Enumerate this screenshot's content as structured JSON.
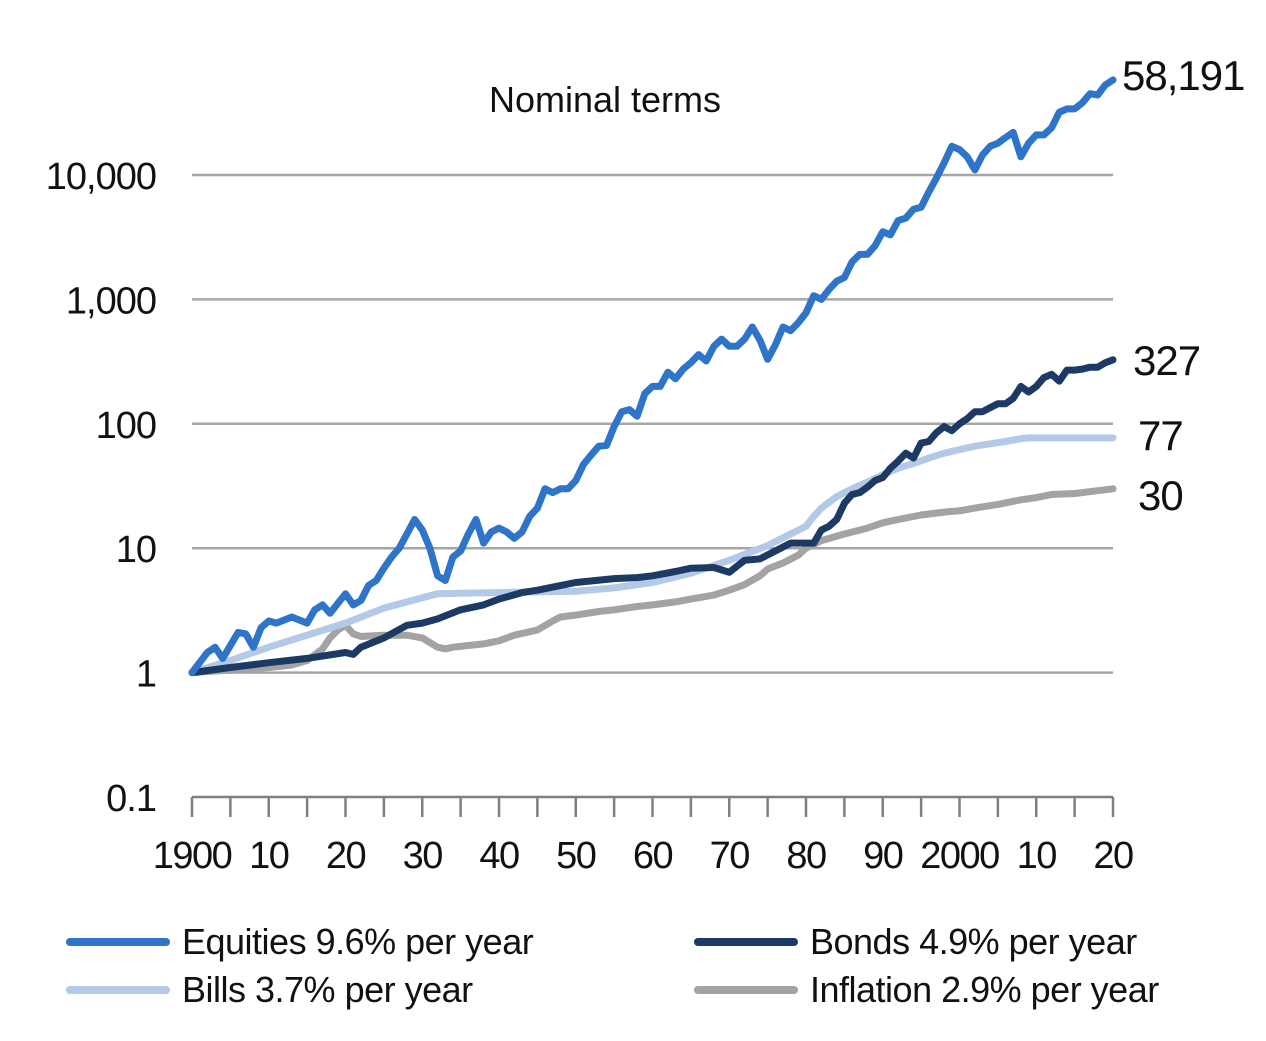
{
  "chart_data": {
    "type": "line",
    "title": "Nominal terms",
    "xlabel": "",
    "ylabel": "",
    "y_scale": "log",
    "ylim": [
      0.1,
      60000
    ],
    "xlim": [
      1900,
      2020
    ],
    "y_ticks": [
      0.1,
      1,
      10,
      100,
      1000,
      10000
    ],
    "y_tick_labels": [
      "0.1",
      "1",
      "10",
      "100",
      "1,000",
      "10,000"
    ],
    "x_ticks": [
      1900,
      1910,
      1920,
      1930,
      1940,
      1950,
      1960,
      1970,
      1980,
      1990,
      2000,
      2010,
      2020
    ],
    "x_tick_labels": [
      "1900",
      "10",
      "20",
      "30",
      "40",
      "50",
      "60",
      "70",
      "80",
      "90",
      "2000",
      "10",
      "20"
    ],
    "grid": "horizontal",
    "legend_position": "bottom",
    "series": [
      {
        "name": "Equities",
        "legend_label": "Equities  9.6% per year",
        "color": "#2e74c9",
        "end_label": "58,191",
        "points": [
          [
            1900,
            1
          ],
          [
            1902,
            1.45
          ],
          [
            1903,
            1.6
          ],
          [
            1904,
            1.3
          ],
          [
            1906,
            2.1
          ],
          [
            1907,
            2.05
          ],
          [
            1908,
            1.6
          ],
          [
            1909,
            2.3
          ],
          [
            1910,
            2.6
          ],
          [
            1911,
            2.5
          ],
          [
            1913,
            2.8
          ],
          [
            1915,
            2.5
          ],
          [
            1916,
            3.2
          ],
          [
            1917,
            3.5
          ],
          [
            1918,
            3
          ],
          [
            1919,
            3.6
          ],
          [
            1920,
            4.3
          ],
          [
            1921,
            3.5
          ],
          [
            1922,
            3.8
          ],
          [
            1923,
            5
          ],
          [
            1924,
            5.5
          ],
          [
            1925,
            6.9
          ],
          [
            1926,
            8.5
          ],
          [
            1927,
            10
          ],
          [
            1928,
            13
          ],
          [
            1929,
            17
          ],
          [
            1930,
            14
          ],
          [
            1931,
            10
          ],
          [
            1932,
            6
          ],
          [
            1933,
            5.5
          ],
          [
            1934,
            8.5
          ],
          [
            1935,
            9.5
          ],
          [
            1936,
            13
          ],
          [
            1937,
            17
          ],
          [
            1938,
            11
          ],
          [
            1939,
            13.5
          ],
          [
            1940,
            14.5
          ],
          [
            1941,
            13.5
          ],
          [
            1942,
            12
          ],
          [
            1943,
            13.5
          ],
          [
            1944,
            18
          ],
          [
            1945,
            21
          ],
          [
            1946,
            30
          ],
          [
            1947,
            28
          ],
          [
            1948,
            30
          ],
          [
            1949,
            30
          ],
          [
            1950,
            35
          ],
          [
            1951,
            47
          ],
          [
            1952,
            56
          ],
          [
            1953,
            66
          ],
          [
            1954,
            67
          ],
          [
            1955,
            95
          ],
          [
            1956,
            125
          ],
          [
            1957,
            130
          ],
          [
            1958,
            115
          ],
          [
            1959,
            175
          ],
          [
            1960,
            200
          ],
          [
            1961,
            200
          ],
          [
            1962,
            260
          ],
          [
            1963,
            230
          ],
          [
            1964,
            275
          ],
          [
            1965,
            310
          ],
          [
            1966,
            360
          ],
          [
            1967,
            320
          ],
          [
            1968,
            420
          ],
          [
            1969,
            480
          ],
          [
            1970,
            420
          ],
          [
            1971,
            420
          ],
          [
            1972,
            480
          ],
          [
            1973,
            600
          ],
          [
            1974,
            470
          ],
          [
            1975,
            330
          ],
          [
            1976,
            430
          ],
          [
            1977,
            600
          ],
          [
            1978,
            560
          ],
          [
            1979,
            650
          ],
          [
            1980,
            780
          ],
          [
            1981,
            1070
          ],
          [
            1982,
            1000
          ],
          [
            1983,
            1200
          ],
          [
            1984,
            1400
          ],
          [
            1985,
            1500
          ],
          [
            1986,
            2000
          ],
          [
            1987,
            2300
          ],
          [
            1988,
            2300
          ],
          [
            1989,
            2700
          ],
          [
            1990,
            3500
          ],
          [
            1991,
            3300
          ],
          [
            1992,
            4300
          ],
          [
            1993,
            4500
          ],
          [
            1994,
            5300
          ],
          [
            1995,
            5500
          ],
          [
            1996,
            7300
          ],
          [
            1997,
            9500
          ],
          [
            1998,
            12500
          ],
          [
            1999,
            17000
          ],
          [
            2000,
            16000
          ],
          [
            2001,
            14000
          ],
          [
            2002,
            11000
          ],
          [
            2003,
            14500
          ],
          [
            2004,
            17000
          ],
          [
            2005,
            18000
          ],
          [
            2006,
            20000
          ],
          [
            2007,
            22000
          ],
          [
            2008,
            14000
          ],
          [
            2009,
            18000
          ],
          [
            2010,
            21000
          ],
          [
            2011,
            21000
          ],
          [
            2012,
            24000
          ],
          [
            2013,
            32000
          ],
          [
            2014,
            34000
          ],
          [
            2015,
            34000
          ],
          [
            2016,
            38000
          ],
          [
            2017,
            45000
          ],
          [
            2018,
            44000
          ],
          [
            2019,
            53000
          ],
          [
            2020,
            58191
          ]
        ]
      },
      {
        "name": "Bonds",
        "legend_label": "Bonds  4.9% per year",
        "color": "#1c3a63",
        "end_label": "327",
        "points": [
          [
            1900,
            1
          ],
          [
            1905,
            1.1
          ],
          [
            1910,
            1.2
          ],
          [
            1915,
            1.3
          ],
          [
            1920,
            1.45
          ],
          [
            1921,
            1.4
          ],
          [
            1922,
            1.6
          ],
          [
            1925,
            1.9
          ],
          [
            1928,
            2.4
          ],
          [
            1930,
            2.5
          ],
          [
            1932,
            2.7
          ],
          [
            1935,
            3.2
          ],
          [
            1938,
            3.5
          ],
          [
            1940,
            3.9
          ],
          [
            1943,
            4.4
          ],
          [
            1945,
            4.6
          ],
          [
            1948,
            5
          ],
          [
            1950,
            5.3
          ],
          [
            1955,
            5.7
          ],
          [
            1958,
            5.8
          ],
          [
            1960,
            6
          ],
          [
            1963,
            6.5
          ],
          [
            1965,
            6.9
          ],
          [
            1968,
            7
          ],
          [
            1970,
            6.4
          ],
          [
            1972,
            8
          ],
          [
            1974,
            8.2
          ],
          [
            1976,
            9.5
          ],
          [
            1978,
            11
          ],
          [
            1980,
            11
          ],
          [
            1981,
            11
          ],
          [
            1982,
            14
          ],
          [
            1983,
            15
          ],
          [
            1984,
            17
          ],
          [
            1985,
            23
          ],
          [
            1986,
            27
          ],
          [
            1987,
            28
          ],
          [
            1988,
            31
          ],
          [
            1989,
            35
          ],
          [
            1990,
            37
          ],
          [
            1991,
            44
          ],
          [
            1992,
            50
          ],
          [
            1993,
            58
          ],
          [
            1994,
            53
          ],
          [
            1995,
            70
          ],
          [
            1996,
            72
          ],
          [
            1997,
            85
          ],
          [
            1998,
            95
          ],
          [
            1999,
            88
          ],
          [
            2000,
            100
          ],
          [
            2001,
            110
          ],
          [
            2002,
            125
          ],
          [
            2003,
            125
          ],
          [
            2004,
            135
          ],
          [
            2005,
            145
          ],
          [
            2006,
            145
          ],
          [
            2007,
            160
          ],
          [
            2008,
            200
          ],
          [
            2009,
            180
          ],
          [
            2010,
            200
          ],
          [
            2011,
            235
          ],
          [
            2012,
            250
          ],
          [
            2013,
            220
          ],
          [
            2014,
            270
          ],
          [
            2015,
            270
          ],
          [
            2016,
            275
          ],
          [
            2017,
            285
          ],
          [
            2018,
            285
          ],
          [
            2019,
            310
          ],
          [
            2020,
            327
          ]
        ]
      },
      {
        "name": "Bills",
        "legend_label": "Bills  3.7% per year",
        "color": "#b4c9e8",
        "end_label": "77",
        "points": [
          [
            1900,
            1
          ],
          [
            1905,
            1.25
          ],
          [
            1910,
            1.6
          ],
          [
            1915,
            2
          ],
          [
            1920,
            2.5
          ],
          [
            1925,
            3.3
          ],
          [
            1930,
            4
          ],
          [
            1932,
            4.3
          ],
          [
            1935,
            4.35
          ],
          [
            1940,
            4.4
          ],
          [
            1945,
            4.45
          ],
          [
            1950,
            4.5
          ],
          [
            1955,
            4.8
          ],
          [
            1960,
            5.3
          ],
          [
            1965,
            6.3
          ],
          [
            1970,
            8
          ],
          [
            1975,
            10.5
          ],
          [
            1980,
            15
          ],
          [
            1981,
            18
          ],
          [
            1982,
            21
          ],
          [
            1984,
            26
          ],
          [
            1986,
            30
          ],
          [
            1988,
            34
          ],
          [
            1990,
            39
          ],
          [
            1992,
            44
          ],
          [
            1994,
            48
          ],
          [
            1996,
            53
          ],
          [
            1998,
            58
          ],
          [
            2000,
            62
          ],
          [
            2002,
            66
          ],
          [
            2004,
            69
          ],
          [
            2006,
            72
          ],
          [
            2008,
            76
          ],
          [
            2009,
            77
          ],
          [
            2012,
            77
          ],
          [
            2015,
            77
          ],
          [
            2018,
            77
          ],
          [
            2020,
            77
          ]
        ]
      },
      {
        "name": "Inflation",
        "legend_label": "Inflation  2.9% per year",
        "color": "#a3a3a3",
        "end_label": "30",
        "points": [
          [
            1900,
            1
          ],
          [
            1905,
            1.05
          ],
          [
            1910,
            1.1
          ],
          [
            1913,
            1.15
          ],
          [
            1915,
            1.25
          ],
          [
            1917,
            1.55
          ],
          [
            1918,
            1.9
          ],
          [
            1919,
            2.2
          ],
          [
            1920,
            2.4
          ],
          [
            1921,
            2.05
          ],
          [
            1922,
            1.95
          ],
          [
            1925,
            2.0
          ],
          [
            1928,
            2.0
          ],
          [
            1930,
            1.9
          ],
          [
            1932,
            1.6
          ],
          [
            1933,
            1.55
          ],
          [
            1934,
            1.6
          ],
          [
            1936,
            1.65
          ],
          [
            1938,
            1.7
          ],
          [
            1940,
            1.8
          ],
          [
            1942,
            2.0
          ],
          [
            1945,
            2.2
          ],
          [
            1947,
            2.6
          ],
          [
            1948,
            2.8
          ],
          [
            1950,
            2.9
          ],
          [
            1953,
            3.1
          ],
          [
            1955,
            3.2
          ],
          [
            1958,
            3.4
          ],
          [
            1960,
            3.5
          ],
          [
            1963,
            3.7
          ],
          [
            1965,
            3.9
          ],
          [
            1968,
            4.2
          ],
          [
            1970,
            4.6
          ],
          [
            1972,
            5.1
          ],
          [
            1974,
            6
          ],
          [
            1975,
            6.8
          ],
          [
            1977,
            7.6
          ],
          [
            1979,
            8.8
          ],
          [
            1980,
            10
          ],
          [
            1982,
            11.5
          ],
          [
            1985,
            13
          ],
          [
            1988,
            14.5
          ],
          [
            1990,
            16
          ],
          [
            1992,
            17
          ],
          [
            1995,
            18.5
          ],
          [
            1998,
            19.5
          ],
          [
            2000,
            20
          ],
          [
            2002,
            21
          ],
          [
            2005,
            22.5
          ],
          [
            2008,
            24.5
          ],
          [
            2010,
            25.5
          ],
          [
            2012,
            27
          ],
          [
            2015,
            27.5
          ],
          [
            2018,
            29
          ],
          [
            2020,
            30
          ]
        ]
      }
    ]
  }
}
